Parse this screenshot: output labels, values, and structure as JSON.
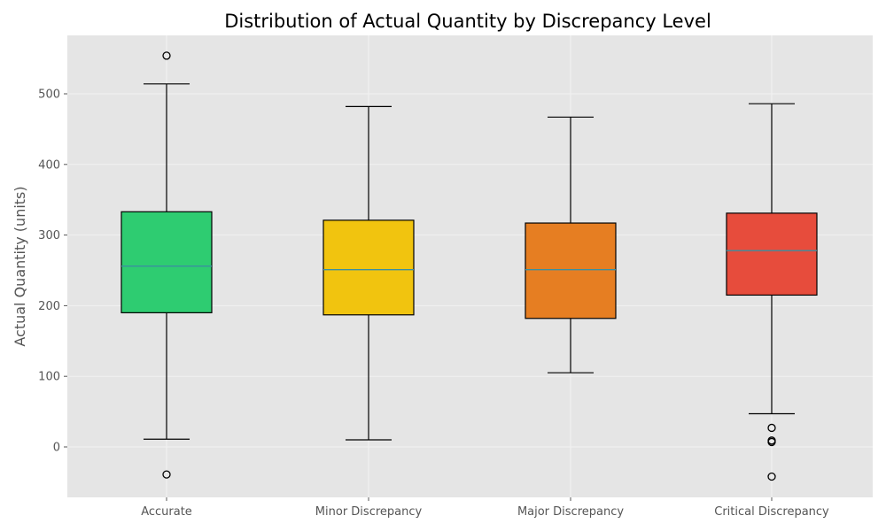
{
  "chart_data": {
    "type": "box",
    "title": "Distribution of Actual Quantity by Discrepancy Level",
    "xlabel": "",
    "ylabel": "Actual Quantity (units)",
    "ylim": [
      -70,
      585
    ],
    "yticks": [
      0,
      100,
      200,
      300,
      400,
      500
    ],
    "grid": true,
    "categories": [
      "Accurate",
      "Minor Discrepancy",
      "Major Discrepancy",
      "Critical Discrepancy"
    ],
    "colors": [
      "#2ecc71",
      "#f1c40f",
      "#e67e22",
      "#e74c3c"
    ],
    "boxes": [
      {
        "category": "Accurate",
        "whisker_low": 11,
        "q1": 190,
        "median": 256,
        "q3": 333,
        "whisker_high": 514,
        "outliers": [
          554,
          -39
        ]
      },
      {
        "category": "Minor Discrepancy",
        "whisker_low": 10,
        "q1": 187,
        "median": 251,
        "q3": 321,
        "whisker_high": 482,
        "outliers": []
      },
      {
        "category": "Major Discrepancy",
        "whisker_low": 105,
        "q1": 182,
        "median": 251,
        "q3": 317,
        "whisker_high": 467,
        "outliers": []
      },
      {
        "category": "Critical Discrepancy",
        "whisker_low": 47,
        "q1": 215,
        "median": 278,
        "q3": 331,
        "whisker_high": 486,
        "outliers": [
          27,
          9,
          7,
          -42
        ]
      }
    ]
  }
}
